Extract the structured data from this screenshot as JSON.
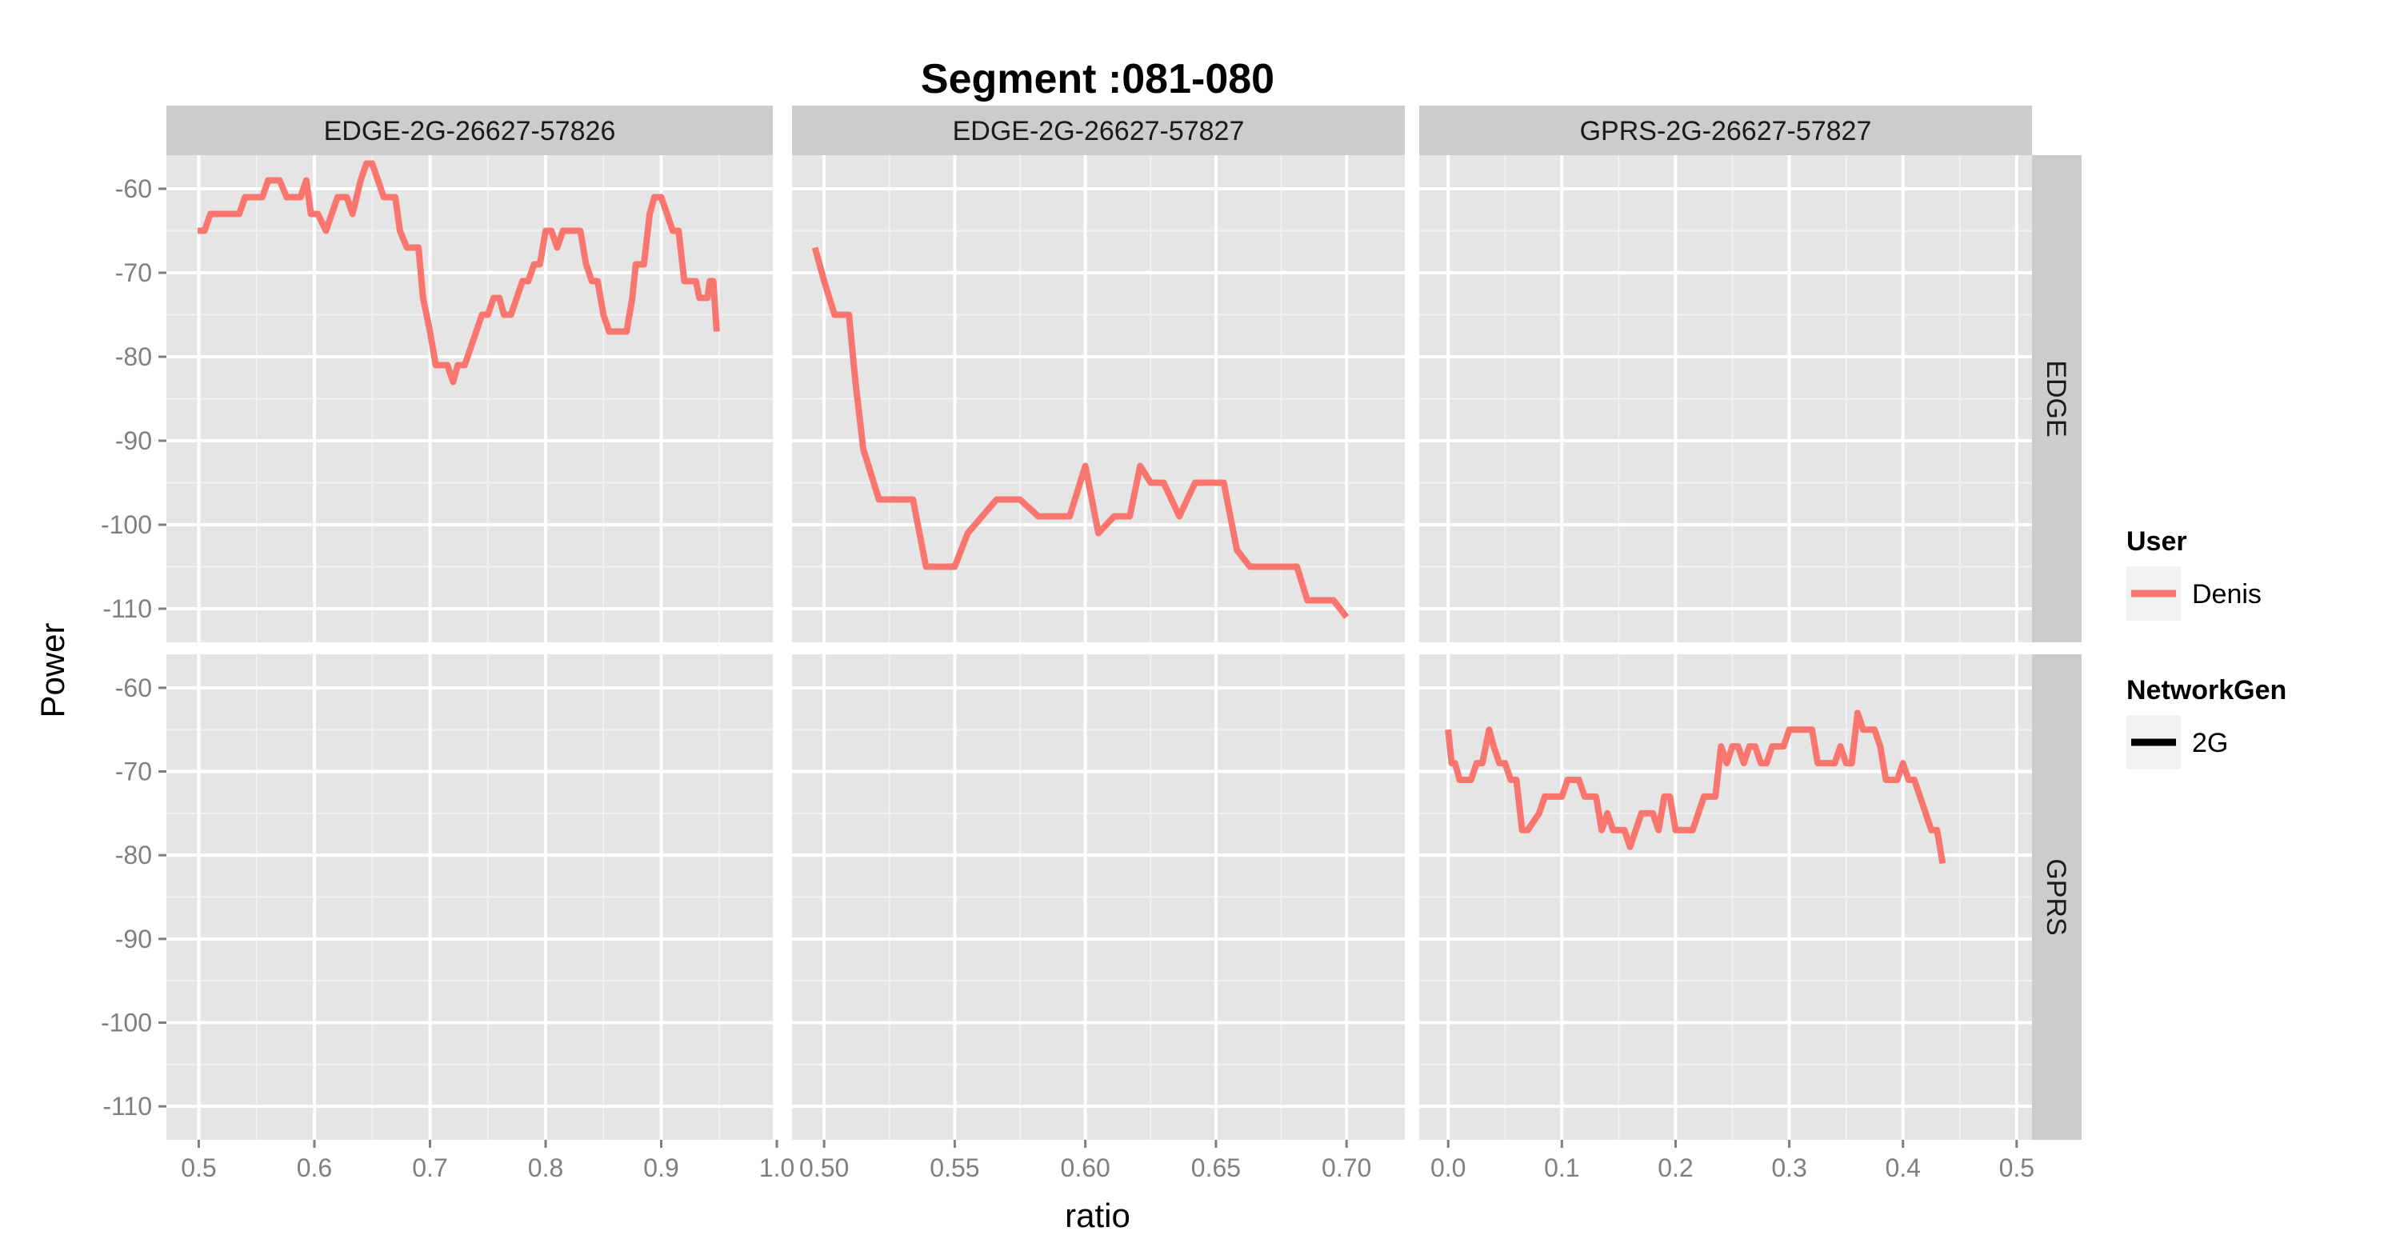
{
  "chart_data": {
    "type": "line",
    "title": "Segment :081-080",
    "xlabel": "ratio",
    "ylabel": "Power",
    "grid": true,
    "legend_position": "right",
    "series_color": "#F8766D",
    "col_facets": [
      "EDGE-2G-26627-57826",
      "EDGE-2G-26627-57827",
      "GPRS-2G-26627-57827"
    ],
    "row_facets": [
      "EDGE",
      "GPRS"
    ],
    "ylim": [
      -114,
      -56
    ],
    "y_ticks": [
      -60,
      -70,
      -80,
      -90,
      -100,
      -110
    ],
    "y_tick_labels": [
      "-60",
      "-70",
      "-80",
      "-90",
      "-100",
      "-110"
    ],
    "x_axes": [
      {
        "xlim": [
          0.472,
          0.9965
        ],
        "ticks": [
          0.5,
          0.6,
          0.7,
          0.8,
          0.9,
          1.0
        ],
        "tick_labels": [
          "0.5",
          "0.6",
          "0.7",
          "0.8",
          "0.9",
          "1.0"
        ]
      },
      {
        "xlim": [
          0.4877,
          0.7223
        ],
        "ticks": [
          0.5,
          0.55,
          0.6,
          0.65,
          0.7
        ],
        "tick_labels": [
          "0.50",
          "0.55",
          "0.60",
          "0.65",
          "0.70"
        ]
      },
      {
        "xlim": [
          -0.0255,
          0.5135
        ],
        "ticks": [
          0.0,
          0.1,
          0.2,
          0.3,
          0.4,
          0.5
        ],
        "tick_labels": [
          "0.0",
          "0.1",
          "0.2",
          "0.3",
          "0.4",
          "0.5"
        ]
      }
    ],
    "legends": [
      {
        "title": "User",
        "key": "line",
        "color": "#F8766D",
        "items": [
          "Denis"
        ]
      },
      {
        "title": "NetworkGen",
        "key": "line",
        "color": "#000000",
        "items": [
          "2G"
        ]
      }
    ],
    "panels": [
      {
        "col": 0,
        "row": 0,
        "series": "Denis",
        "points": [
          [
            0.499,
            -65
          ],
          [
            0.505,
            -65
          ],
          [
            0.51,
            -63
          ],
          [
            0.515,
            -63
          ],
          [
            0.52,
            -63
          ],
          [
            0.53,
            -63
          ],
          [
            0.535,
            -63
          ],
          [
            0.54,
            -61
          ],
          [
            0.545,
            -61
          ],
          [
            0.555,
            -61
          ],
          [
            0.56,
            -59
          ],
          [
            0.57,
            -59
          ],
          [
            0.576,
            -61
          ],
          [
            0.58,
            -61
          ],
          [
            0.588,
            -61
          ],
          [
            0.593,
            -59
          ],
          [
            0.597,
            -63
          ],
          [
            0.603,
            -63
          ],
          [
            0.61,
            -65
          ],
          [
            0.615,
            -63
          ],
          [
            0.62,
            -61
          ],
          [
            0.628,
            -61
          ],
          [
            0.633,
            -63
          ],
          [
            0.64,
            -59
          ],
          [
            0.645,
            -57
          ],
          [
            0.65,
            -57
          ],
          [
            0.655,
            -59
          ],
          [
            0.66,
            -61
          ],
          [
            0.67,
            -61
          ],
          [
            0.674,
            -65
          ],
          [
            0.68,
            -67
          ],
          [
            0.69,
            -67
          ],
          [
            0.694,
            -73
          ],
          [
            0.7,
            -77
          ],
          [
            0.705,
            -81
          ],
          [
            0.715,
            -81
          ],
          [
            0.72,
            -83
          ],
          [
            0.724,
            -81
          ],
          [
            0.73,
            -81
          ],
          [
            0.735,
            -79
          ],
          [
            0.74,
            -77
          ],
          [
            0.745,
            -75
          ],
          [
            0.75,
            -75
          ],
          [
            0.755,
            -73
          ],
          [
            0.76,
            -73
          ],
          [
            0.764,
            -75
          ],
          [
            0.77,
            -75
          ],
          [
            0.775,
            -73
          ],
          [
            0.78,
            -71
          ],
          [
            0.785,
            -71
          ],
          [
            0.79,
            -69
          ],
          [
            0.795,
            -69
          ],
          [
            0.8,
            -65
          ],
          [
            0.805,
            -65
          ],
          [
            0.81,
            -67
          ],
          [
            0.815,
            -65
          ],
          [
            0.82,
            -65
          ],
          [
            0.83,
            -65
          ],
          [
            0.835,
            -69
          ],
          [
            0.84,
            -71
          ],
          [
            0.845,
            -71
          ],
          [
            0.85,
            -75
          ],
          [
            0.855,
            -77
          ],
          [
            0.87,
            -77
          ],
          [
            0.875,
            -73
          ],
          [
            0.878,
            -69
          ],
          [
            0.885,
            -69
          ],
          [
            0.89,
            -63
          ],
          [
            0.894,
            -61
          ],
          [
            0.9,
            -61
          ],
          [
            0.905,
            -63
          ],
          [
            0.91,
            -65
          ],
          [
            0.915,
            -65
          ],
          [
            0.92,
            -71
          ],
          [
            0.925,
            -71
          ],
          [
            0.93,
            -71
          ],
          [
            0.933,
            -73
          ],
          [
            0.94,
            -73
          ],
          [
            0.942,
            -71
          ],
          [
            0.945,
            -71
          ],
          [
            0.948,
            -77
          ]
        ]
      },
      {
        "col": 1,
        "row": 0,
        "series": "Denis",
        "points": [
          [
            0.4965,
            -67
          ],
          [
            0.5,
            -71
          ],
          [
            0.504,
            -75
          ],
          [
            0.5095,
            -75
          ],
          [
            0.512,
            -83
          ],
          [
            0.515,
            -91
          ],
          [
            0.521,
            -97
          ],
          [
            0.534,
            -97
          ],
          [
            0.539,
            -105
          ],
          [
            0.55,
            -105
          ],
          [
            0.555,
            -101
          ],
          [
            0.566,
            -97
          ],
          [
            0.575,
            -97
          ],
          [
            0.582,
            -99
          ],
          [
            0.59,
            -99
          ],
          [
            0.594,
            -99
          ],
          [
            0.6,
            -93
          ],
          [
            0.605,
            -101
          ],
          [
            0.611,
            -99
          ],
          [
            0.617,
            -99
          ],
          [
            0.621,
            -93
          ],
          [
            0.625,
            -95
          ],
          [
            0.63,
            -95
          ],
          [
            0.633,
            -97
          ],
          [
            0.636,
            -99
          ],
          [
            0.642,
            -95
          ],
          [
            0.653,
            -95
          ],
          [
            0.658,
            -103
          ],
          [
            0.663,
            -105
          ],
          [
            0.675,
            -105
          ],
          [
            0.681,
            -105
          ],
          [
            0.685,
            -109
          ],
          [
            0.692,
            -109
          ],
          [
            0.695,
            -109
          ],
          [
            0.7,
            -111
          ]
        ]
      },
      {
        "col": 2,
        "row": 1,
        "series": "Denis",
        "points": [
          [
            0.0,
            -65
          ],
          [
            0.003,
            -69
          ],
          [
            0.006,
            -69
          ],
          [
            0.01,
            -71
          ],
          [
            0.02,
            -71
          ],
          [
            0.025,
            -69
          ],
          [
            0.03,
            -69
          ],
          [
            0.036,
            -65
          ],
          [
            0.04,
            -67
          ],
          [
            0.045,
            -69
          ],
          [
            0.05,
            -69
          ],
          [
            0.055,
            -71
          ],
          [
            0.06,
            -71
          ],
          [
            0.065,
            -77
          ],
          [
            0.07,
            -77
          ],
          [
            0.08,
            -75
          ],
          [
            0.085,
            -73
          ],
          [
            0.1,
            -73
          ],
          [
            0.105,
            -71
          ],
          [
            0.115,
            -71
          ],
          [
            0.12,
            -73
          ],
          [
            0.13,
            -73
          ],
          [
            0.135,
            -77
          ],
          [
            0.14,
            -75
          ],
          [
            0.145,
            -77
          ],
          [
            0.155,
            -77
          ],
          [
            0.16,
            -79
          ],
          [
            0.17,
            -75
          ],
          [
            0.18,
            -75
          ],
          [
            0.185,
            -77
          ],
          [
            0.19,
            -73
          ],
          [
            0.195,
            -73
          ],
          [
            0.2,
            -77
          ],
          [
            0.215,
            -77
          ],
          [
            0.22,
            -75
          ],
          [
            0.225,
            -73
          ],
          [
            0.235,
            -73
          ],
          [
            0.24,
            -67
          ],
          [
            0.245,
            -69
          ],
          [
            0.25,
            -67
          ],
          [
            0.255,
            -67
          ],
          [
            0.26,
            -69
          ],
          [
            0.265,
            -67
          ],
          [
            0.27,
            -67
          ],
          [
            0.275,
            -69
          ],
          [
            0.28,
            -69
          ],
          [
            0.285,
            -67
          ],
          [
            0.295,
            -67
          ],
          [
            0.3,
            -65
          ],
          [
            0.32,
            -65
          ],
          [
            0.325,
            -69
          ],
          [
            0.34,
            -69
          ],
          [
            0.345,
            -67
          ],
          [
            0.35,
            -69
          ],
          [
            0.355,
            -69
          ],
          [
            0.36,
            -63
          ],
          [
            0.365,
            -65
          ],
          [
            0.375,
            -65
          ],
          [
            0.38,
            -67
          ],
          [
            0.385,
            -71
          ],
          [
            0.395,
            -71
          ],
          [
            0.4,
            -69
          ],
          [
            0.405,
            -71
          ],
          [
            0.41,
            -71
          ],
          [
            0.42,
            -75
          ],
          [
            0.425,
            -77
          ],
          [
            0.43,
            -77
          ],
          [
            0.435,
            -81
          ]
        ]
      }
    ]
  }
}
